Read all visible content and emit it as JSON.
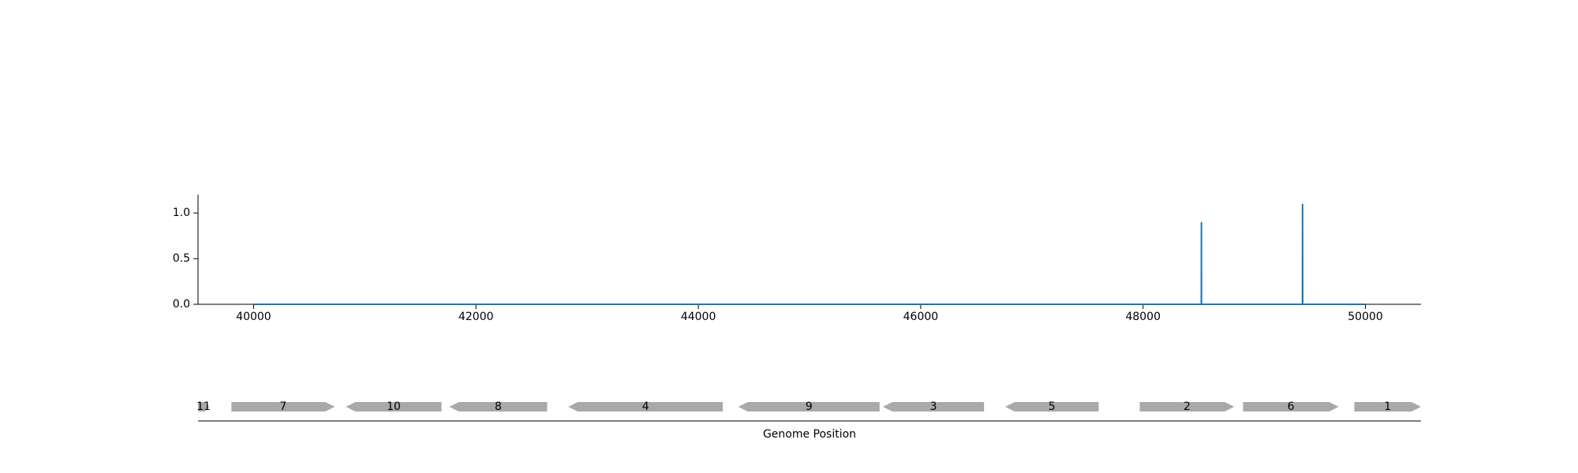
{
  "chart_data": [
    {
      "type": "line",
      "x": [
        40000,
        48524,
        48525,
        48526,
        49434,
        49435,
        49436,
        50000
      ],
      "series": [
        {
          "values": [
            0,
            0,
            0.9,
            0,
            0,
            1.1,
            0,
            0
          ],
          "color": "#1f77b4"
        }
      ],
      "xlim": [
        39500,
        50500
      ],
      "ylim": [
        0,
        1.2
      ],
      "xticks": [
        40000,
        42000,
        44000,
        46000,
        48000,
        50000
      ],
      "yticks": [
        0.0,
        0.5,
        1.0
      ],
      "xtick_labels": [
        "40000",
        "42000",
        "44000",
        "46000",
        "48000",
        "50000"
      ],
      "ytick_labels": [
        "0.0",
        "0.5",
        "1.0"
      ],
      "grid": false
    },
    {
      "type": "gene_track",
      "xlabel": "Genome Position",
      "xlim": [
        39500,
        50500
      ],
      "gene_color": "#a9a9a9",
      "genes": [
        {
          "label": "11",
          "start": 39500,
          "end": 39600,
          "strand": "+"
        },
        {
          "label": "7",
          "start": 39800,
          "end": 40730,
          "strand": "+"
        },
        {
          "label": "10",
          "start": 40830,
          "end": 41690,
          "strand": "-"
        },
        {
          "label": "8",
          "start": 41760,
          "end": 42640,
          "strand": "-"
        },
        {
          "label": "4",
          "start": 42830,
          "end": 44220,
          "strand": "-"
        },
        {
          "label": "9",
          "start": 44360,
          "end": 45630,
          "strand": "-"
        },
        {
          "label": "3",
          "start": 45660,
          "end": 46570,
          "strand": "-"
        },
        {
          "label": "5",
          "start": 46760,
          "end": 47600,
          "strand": "-"
        },
        {
          "label": "2",
          "start": 47970,
          "end": 48820,
          "strand": "+"
        },
        {
          "label": "6",
          "start": 48900,
          "end": 49760,
          "strand": "+"
        },
        {
          "label": "1",
          "start": 49900,
          "end": 50500,
          "strand": "+"
        }
      ]
    }
  ]
}
